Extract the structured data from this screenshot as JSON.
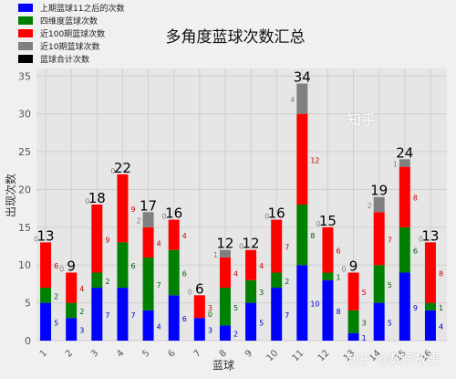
{
  "chart_data": {
    "type": "bar",
    "title": "多角度蓝球次数汇总",
    "xlabel": "蓝球",
    "ylabel": "出现次数",
    "ylim": [
      0,
      36
    ],
    "yticks": [
      0,
      5,
      10,
      15,
      20,
      25,
      30,
      35
    ],
    "grid": true,
    "legend_position": "top-left",
    "categories": [
      "1",
      "2",
      "3",
      "4",
      "5",
      "6",
      "7",
      "8",
      "9",
      "10",
      "11",
      "12",
      "13",
      "14",
      "15",
      "16"
    ],
    "series": [
      {
        "name": "上期蓝球11之后的次数",
        "color": "#0000ff",
        "values": [
          5,
          3,
          7,
          7,
          4,
          6,
          3,
          2,
          5,
          7,
          10,
          8,
          1,
          5,
          9,
          4
        ]
      },
      {
        "name": "四维度蓝球次数",
        "color": "#008000",
        "values": [
          2,
          2,
          2,
          6,
          7,
          6,
          0,
          5,
          3,
          2,
          8,
          1,
          3,
          5,
          6,
          1
        ]
      },
      {
        "name": "近100期蓝球次数",
        "color": "#ff0000",
        "values": [
          6,
          4,
          9,
          9,
          4,
          4,
          3,
          4,
          4,
          7,
          12,
          6,
          5,
          7,
          8,
          8
        ]
      },
      {
        "name": "近10期蓝球次数",
        "color": "#808080",
        "values": [
          0,
          0,
          0,
          0,
          2,
          0,
          0,
          1,
          0,
          0,
          4,
          0,
          0,
          2,
          1,
          0
        ]
      },
      {
        "name": "蓝球合计次数",
        "color": "#000000",
        "values": [
          13,
          9,
          18,
          22,
          17,
          16,
          6,
          12,
          12,
          16,
          34,
          15,
          9,
          19,
          24,
          13
        ]
      }
    ]
  },
  "watermark": "知乎 @数字故事",
  "brand": "知乎"
}
